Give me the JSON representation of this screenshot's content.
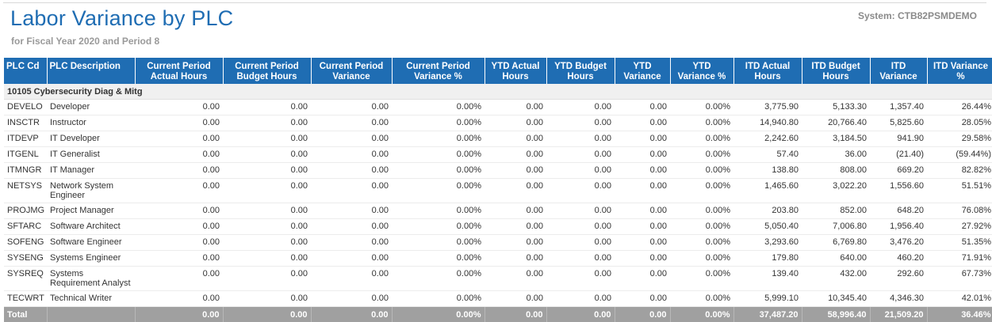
{
  "header": {
    "title": "Labor Variance by PLC",
    "subtitle": "for Fiscal Year 2020 and Period  8",
    "system": "System:  CTB82PSMDEMO"
  },
  "table": {
    "columns": [
      "PLC Cd",
      "PLC Description",
      "Current Period Actual Hours",
      "Current Period Budget Hours",
      "Current Period Variance",
      "Current Period Variance %",
      "YTD Actual Hours",
      "YTD Budget Hours",
      "YTD Variance",
      "YTD Variance %",
      "ITD Actual Hours",
      "ITD Budget Hours",
      "ITD Variance",
      "ITD Variance %"
    ],
    "group": "10105 Cybersecurity Diag & Mitg",
    "rows": [
      [
        "DEVELO",
        "Developer",
        "0.00",
        "0.00",
        "0.00",
        "0.00%",
        "0.00",
        "0.00",
        "0.00",
        "0.00%",
        "3,775.90",
        "5,133.30",
        "1,357.40",
        "26.44%"
      ],
      [
        "INSCTR",
        "Instructor",
        "0.00",
        "0.00",
        "0.00",
        "0.00%",
        "0.00",
        "0.00",
        "0.00",
        "0.00%",
        "14,940.80",
        "20,766.40",
        "5,825.60",
        "28.05%"
      ],
      [
        "ITDEVP",
        "IT Developer",
        "0.00",
        "0.00",
        "0.00",
        "0.00%",
        "0.00",
        "0.00",
        "0.00",
        "0.00%",
        "2,242.60",
        "3,184.50",
        "941.90",
        "29.58%"
      ],
      [
        "ITGENL",
        "IT Generalist",
        "0.00",
        "0.00",
        "0.00",
        "0.00%",
        "0.00",
        "0.00",
        "0.00",
        "0.00%",
        "57.40",
        "36.00",
        "(21.40)",
        "(59.44%)"
      ],
      [
        "ITMNGR",
        "IT Manager",
        "0.00",
        "0.00",
        "0.00",
        "0.00%",
        "0.00",
        "0.00",
        "0.00",
        "0.00%",
        "138.80",
        "808.00",
        "669.20",
        "82.82%"
      ],
      [
        "NETSYS",
        "Network System Engineer",
        "0.00",
        "0.00",
        "0.00",
        "0.00%",
        "0.00",
        "0.00",
        "0.00",
        "0.00%",
        "1,465.60",
        "3,022.20",
        "1,556.60",
        "51.51%"
      ],
      [
        "PROJMG",
        "Project Manager",
        "0.00",
        "0.00",
        "0.00",
        "0.00%",
        "0.00",
        "0.00",
        "0.00",
        "0.00%",
        "203.80",
        "852.00",
        "648.20",
        "76.08%"
      ],
      [
        "SFTARC",
        "Software Architect",
        "0.00",
        "0.00",
        "0.00",
        "0.00%",
        "0.00",
        "0.00",
        "0.00",
        "0.00%",
        "5,050.40",
        "7,006.80",
        "1,956.40",
        "27.92%"
      ],
      [
        "SOFENG",
        "Software Engineer",
        "0.00",
        "0.00",
        "0.00",
        "0.00%",
        "0.00",
        "0.00",
        "0.00",
        "0.00%",
        "3,293.60",
        "6,769.80",
        "3,476.20",
        "51.35%"
      ],
      [
        "SYSENG",
        "Systems Engineer",
        "0.00",
        "0.00",
        "0.00",
        "0.00%",
        "0.00",
        "0.00",
        "0.00",
        "0.00%",
        "179.80",
        "640.00",
        "460.20",
        "71.91%"
      ],
      [
        "SYSREQ",
        "Systems Requirement Analyst",
        "0.00",
        "0.00",
        "0.00",
        "0.00%",
        "0.00",
        "0.00",
        "0.00",
        "0.00%",
        "139.40",
        "432.00",
        "292.60",
        "67.73%"
      ],
      [
        "TECWRT",
        "Technical Writer",
        "0.00",
        "0.00",
        "0.00",
        "0.00%",
        "0.00",
        "0.00",
        "0.00",
        "0.00%",
        "5,999.10",
        "10,345.40",
        "4,346.30",
        "42.01%"
      ]
    ],
    "total": [
      "Total",
      "",
      "0.00",
      "0.00",
      "0.00",
      "0.00%",
      "0.00",
      "0.00",
      "0.00",
      "0.00%",
      "37,487.20",
      "58,996.40",
      "21,509.20",
      "36.46%"
    ]
  }
}
